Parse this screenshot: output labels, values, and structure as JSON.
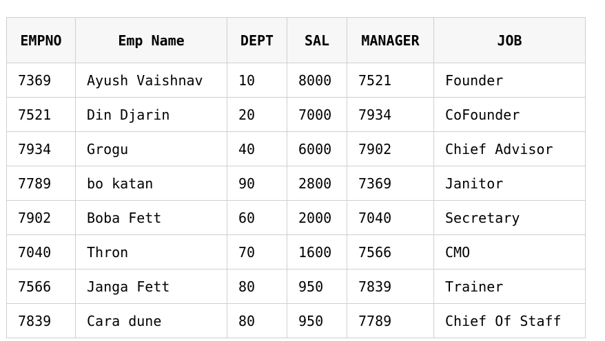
{
  "table": {
    "headers": [
      "EMPNO",
      "Emp Name",
      "DEPT",
      "SAL",
      "MANAGER",
      "JOB"
    ],
    "rows": [
      [
        "7369",
        "Ayush Vaishnav",
        "10",
        "8000",
        "7521",
        "Founder"
      ],
      [
        "7521",
        "Din Djarin",
        "20",
        "7000",
        "7934",
        "CoFounder"
      ],
      [
        "7934",
        "Grogu",
        "40",
        "6000",
        "7902",
        "Chief Advisor"
      ],
      [
        "7789",
        "bo katan",
        "90",
        "2800",
        "7369",
        "Janitor"
      ],
      [
        "7902",
        "Boba Fett",
        "60",
        "2000",
        "7040",
        "Secretary"
      ],
      [
        "7040",
        "Thron",
        "70",
        "1600",
        "7566",
        "CMO"
      ],
      [
        "7566",
        "Janga Fett",
        "80",
        "950",
        "7839",
        "Trainer"
      ],
      [
        "7839",
        "Cara dune",
        "80",
        "950",
        "7789",
        "Chief Of Staff"
      ]
    ]
  },
  "colors": {
    "header_bg": "#f7f7f7",
    "border": "#cfcfcf",
    "text": "#000000"
  }
}
